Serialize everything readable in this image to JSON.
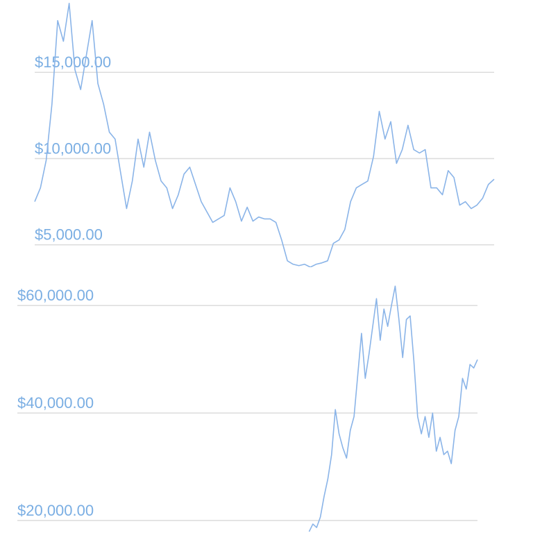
{
  "chart_data": [
    {
      "type": "line",
      "grid": true,
      "ylim": [
        3700,
        19194
      ],
      "yticks": [
        {
          "value": 5000,
          "label": "$5,000.00"
        },
        {
          "value": 10000,
          "label": "$10,000.00"
        },
        {
          "value": 15000,
          "label": "$15,000.00"
        }
      ],
      "series": [
        {
          "color": "#8ab4e8",
          "values": [
            7500,
            8300,
            9900,
            13150,
            18000,
            16800,
            19000,
            15160,
            14000,
            16000,
            18000,
            14350,
            13150,
            11530,
            11130,
            9100,
            7100,
            8700,
            11130,
            9500,
            11530,
            9900,
            8700,
            8300,
            7100,
            7900,
            9100,
            9500,
            8500,
            7500,
            6900,
            6300,
            6500,
            6700,
            8300,
            7500,
            6370,
            7180,
            6370,
            6610,
            6500,
            6500,
            6300,
            5280,
            4070,
            3870,
            3790,
            3870,
            3700,
            3870,
            3950,
            4070,
            5080,
            5280,
            5890,
            7500,
            8300,
            8500,
            8700,
            10120,
            12740,
            11130,
            12140,
            9720,
            10520,
            11930,
            10520,
            10320,
            10520,
            8300,
            8300,
            7900,
            9300,
            8900,
            7300,
            7500,
            7100,
            7300,
            7700,
            8500,
            8800
          ]
        }
      ]
    },
    {
      "type": "line",
      "grid": true,
      "ylim": [
        17680,
        67000
      ],
      "yticks": [
        {
          "value": 20000,
          "label": "$20,000.00"
        },
        {
          "value": 40000,
          "label": "$40,000.00"
        },
        {
          "value": 60000,
          "label": "$60,000.00"
        }
      ],
      "series": [
        {
          "color": "#8ab4e8",
          "values": [
            null,
            null,
            null,
            null,
            null,
            null,
            null,
            null,
            null,
            null,
            null,
            null,
            null,
            null,
            null,
            null,
            null,
            null,
            null,
            null,
            null,
            null,
            null,
            null,
            null,
            null,
            null,
            null,
            null,
            null,
            null,
            null,
            null,
            null,
            null,
            null,
            null,
            null,
            null,
            null,
            null,
            null,
            null,
            null,
            null,
            null,
            null,
            null,
            null,
            null,
            null,
            null,
            null,
            null,
            null,
            null,
            null,
            null,
            null,
            null,
            null,
            null,
            null,
            null,
            null,
            null,
            null,
            null,
            null,
            null,
            null,
            null,
            null,
            null,
            null,
            null,
            null,
            null,
            17940,
            19350,
            18700,
            20650,
            24500,
            27740,
            32260,
            40640,
            36130,
            33550,
            31610,
            36770,
            39350,
            47090,
            54830,
            46450,
            50960,
            56120,
            61280,
            53540,
            59350,
            56120,
            60000,
            63610,
            57410,
            50320,
            57410,
            58060,
            49670,
            39350,
            36130,
            39350,
            35480,
            39990,
            32900,
            35480,
            32260,
            32900,
            30580,
            36770,
            39350,
            46450,
            44450,
            49030,
            48380,
            49930
          ]
        }
      ]
    }
  ]
}
